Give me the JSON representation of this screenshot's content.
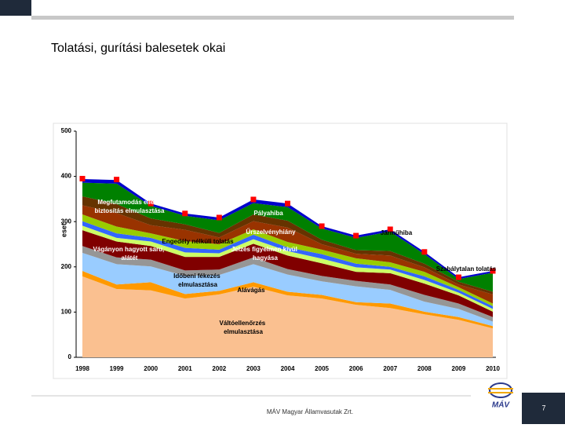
{
  "title": "Tolatási, gurítási balesetek okai",
  "footer": "MÁV Magyar Államvasutak Zrt.",
  "page_number": "7",
  "chart_data": {
    "type": "stacked_area",
    "ylabel": "eset",
    "categories": [
      "1998",
      "1999",
      "2000",
      "2001",
      "2002",
      "2003",
      "2004",
      "2005",
      "2006",
      "2007",
      "2008",
      "2009",
      "2010"
    ],
    "ylim": [
      0,
      500
    ],
    "yticks": [
      0,
      100,
      200,
      300,
      400,
      500
    ],
    "series": [
      {
        "name": "Váltóellenőrzés elmulasztása",
        "color": "#fac090",
        "values": [
          179,
          151,
          148,
          130,
          139,
          156,
          137,
          130,
          116,
          109,
          95,
          83,
          64
        ]
      },
      {
        "name": "Alávágás",
        "color": "#ff9900",
        "values": [
          12,
          10,
          18,
          10,
          8,
          10,
          8,
          8,
          6,
          10,
          6,
          6,
          5
        ]
      },
      {
        "name": "Időbeni fékezés elmulasztása",
        "color": "#99ccff",
        "values": [
          40,
          45,
          35,
          40,
          35,
          40,
          38,
          30,
          35,
          30,
          22,
          18,
          10
        ]
      },
      {
        "name": "Vágányon hagyott saru, alátét",
        "color": "#969696",
        "values": [
          15,
          15,
          15,
          12,
          12,
          15,
          12,
          12,
          12,
          12,
          15,
          12,
          10
        ]
      },
      {
        "name": "Jelzés figyelmen kívül hagyása",
        "color": "#800000",
        "values": [
          35,
          35,
          30,
          30,
          28,
          30,
          30,
          28,
          20,
          25,
          25,
          18,
          12
        ]
      },
      {
        "name": "Engedély nélküli tolatás",
        "color": "#ccff66",
        "values": [
          10,
          8,
          10,
          10,
          8,
          10,
          10,
          10,
          10,
          8,
          8,
          6,
          6
        ]
      },
      {
        "name": "Szabálytalan tolatás",
        "color": "#3366ff",
        "values": [
          10,
          10,
          8,
          10,
          8,
          10,
          8,
          10,
          8,
          6,
          8,
          6,
          6
        ]
      },
      {
        "name": "Űrszelvényhiány",
        "color": "#99cc00",
        "values": [
          15,
          15,
          10,
          15,
          12,
          12,
          12,
          10,
          12,
          10,
          10,
          6,
          6
        ]
      },
      {
        "name": "Pályahiba",
        "color": "#993300",
        "values": [
          20,
          30,
          18,
          25,
          15,
          18,
          32,
          12,
          10,
          15,
          10,
          6,
          20
        ]
      },
      {
        "name": "Megfutamodás elleni biztosítás elmulasztása",
        "color": "#663300",
        "values": [
          20,
          20,
          15,
          12,
          10,
          15,
          15,
          10,
          8,
          10,
          8,
          6,
          6
        ]
      },
      {
        "name": "Járműhiba",
        "color": "#008000",
        "values": [
          30,
          45,
          28,
          19,
          28,
          25,
          30,
          25,
          27,
          43,
          21,
          6,
          42
        ]
      },
      {
        "color": "#0000cc",
        "values": [
          8,
          8,
          5,
          5,
          6,
          8,
          8,
          5,
          5,
          5,
          5,
          4,
          4
        ]
      }
    ],
    "markers": {
      "color": "#ff0000",
      "values": [
        395,
        393,
        340,
        318,
        309,
        349,
        340,
        290,
        269,
        283,
        233,
        177,
        191
      ]
    }
  }
}
